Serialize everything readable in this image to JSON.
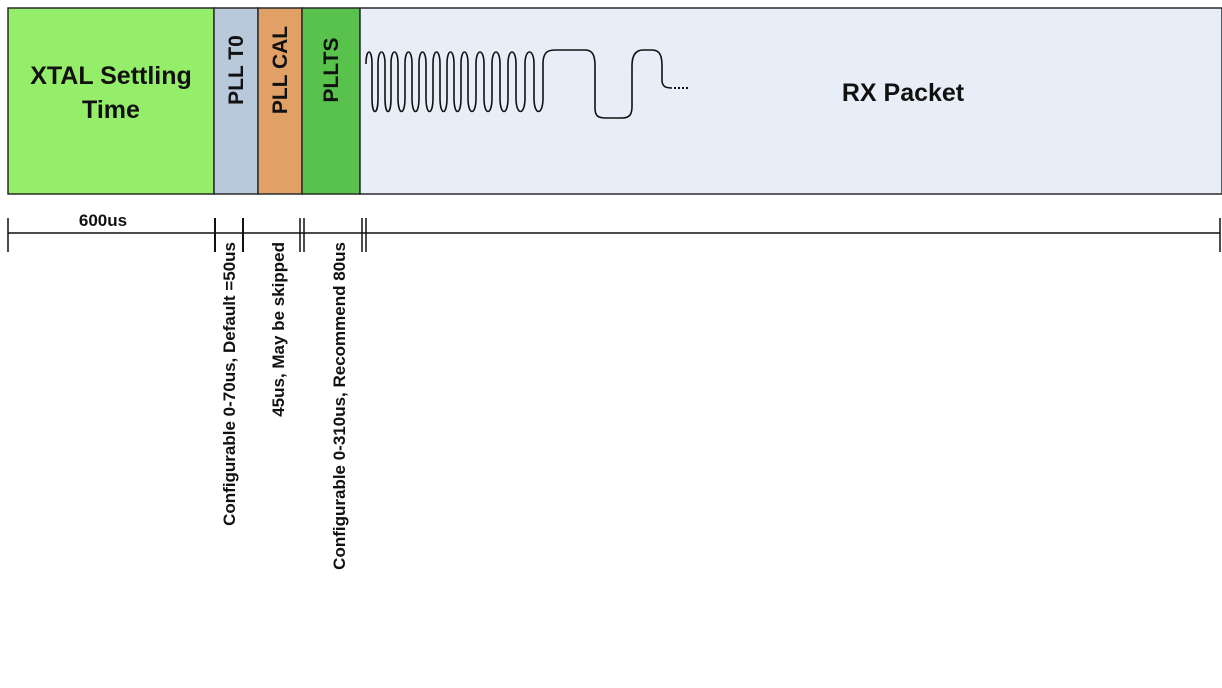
{
  "segments": [
    {
      "id": "xtal",
      "label_line1": "XTAL Settling",
      "label_line2": "Time",
      "color": "#94ee6a"
    },
    {
      "id": "pll_t0",
      "label": "PLL T0",
      "color": "#b8c9dc"
    },
    {
      "id": "pll_cal",
      "label": "PLL CAL",
      "color": "#e1a066"
    },
    {
      "id": "pllts",
      "label": "PLLTS",
      "color": "#58c24c"
    },
    {
      "id": "rx_packet",
      "label": "RX Packet",
      "color": "#e8eef7"
    }
  ],
  "timeline": {
    "xtal_duration": "600us",
    "pll_t0_note": "Configurable 0-70us, Default =50us",
    "pll_cal_note": "45us, May be skipped",
    "pllts_note": "Configurable 0-310us, Recommend 80us"
  }
}
